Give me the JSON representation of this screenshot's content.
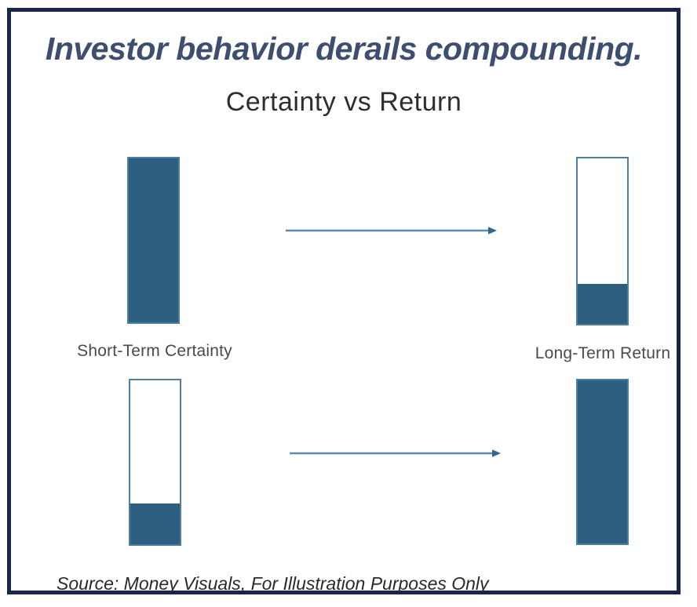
{
  "header": {
    "title": "Investor behavior derails compounding."
  },
  "chart_data": {
    "type": "bar",
    "title": "Certainty vs Return",
    "columns": [
      "Short-Term Certainty",
      "Long-Term Return"
    ],
    "unit": "percent_filled",
    "rows": [
      {
        "short_term_certainty": 100,
        "long_term_return": 24
      },
      {
        "short_term_certainty": 25,
        "long_term_return": 100
      }
    ],
    "annotations": [
      "arrow from Short-Term Certainty to Long-Term Return (row 1)",
      "arrow from Short-Term Certainty to Long-Term Return (row 2)"
    ]
  },
  "footer": {
    "source": "Source: Money Visuals, For Illustration Purposes Only"
  },
  "colors": {
    "bar_fill": "#2E5F81",
    "bar_border": "#4E7FA3",
    "arrow": "#5C8CAD",
    "frame_border": "#17244E",
    "title_text": "#3E4E6E",
    "subtitle_text": "#2E2E2E",
    "label_text": "#4A4A4A",
    "source_text": "#2A2A2A"
  }
}
